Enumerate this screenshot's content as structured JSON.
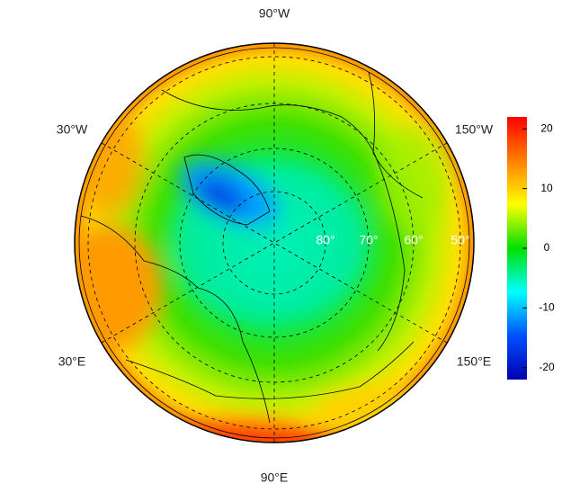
{
  "map": {
    "longitude_labels": {
      "top": "90°W",
      "upper_left": "30°W",
      "upper_right": "150°W",
      "lower_left": "30°E",
      "lower_right": "150°E",
      "bottom": "90°E"
    },
    "latitude_labels": [
      "80°",
      "70°",
      "60°",
      "50°"
    ],
    "colorbar": {
      "clim": [
        -22,
        22
      ],
      "ticks": [
        20,
        10,
        0,
        -10,
        -20
      ],
      "colors": [
        "#0000b0",
        "#0050ff",
        "#00ffff",
        "#00e000",
        "#ffff00",
        "#ff8000",
        "#ff0000"
      ]
    }
  }
}
